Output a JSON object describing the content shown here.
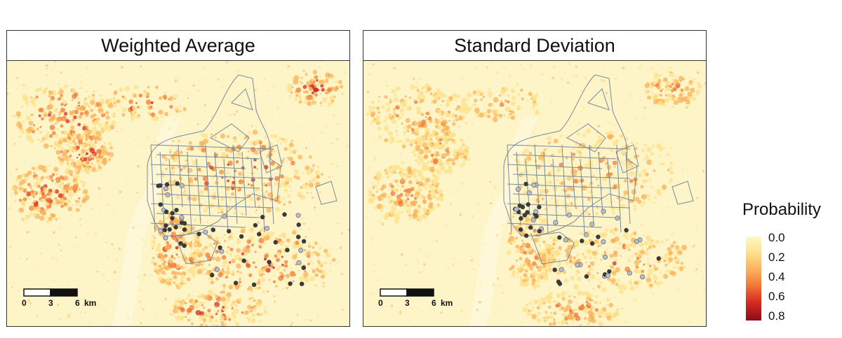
{
  "panels": [
    {
      "title": "Weighted Average"
    },
    {
      "title": "Standard Deviation"
    }
  ],
  "scale_bar": {
    "ticks": [
      "0",
      "3",
      "6"
    ],
    "unit": "km"
  },
  "legend": {
    "title": "Probability",
    "ticks": [
      "0.0",
      "0.2",
      "0.4",
      "0.6",
      "0.8"
    ],
    "colors": [
      "#fff8c8",
      "#fde08a",
      "#fbb05a",
      "#f07a38",
      "#d82a20",
      "#8a0d18"
    ]
  },
  "colors": {
    "background": "#fdf5c8",
    "boundary": "#7a8a9a",
    "point_dark": "#3a3a3a",
    "point_light": "#b8bccc"
  },
  "icons": [
    "scale-bar-icon"
  ]
}
